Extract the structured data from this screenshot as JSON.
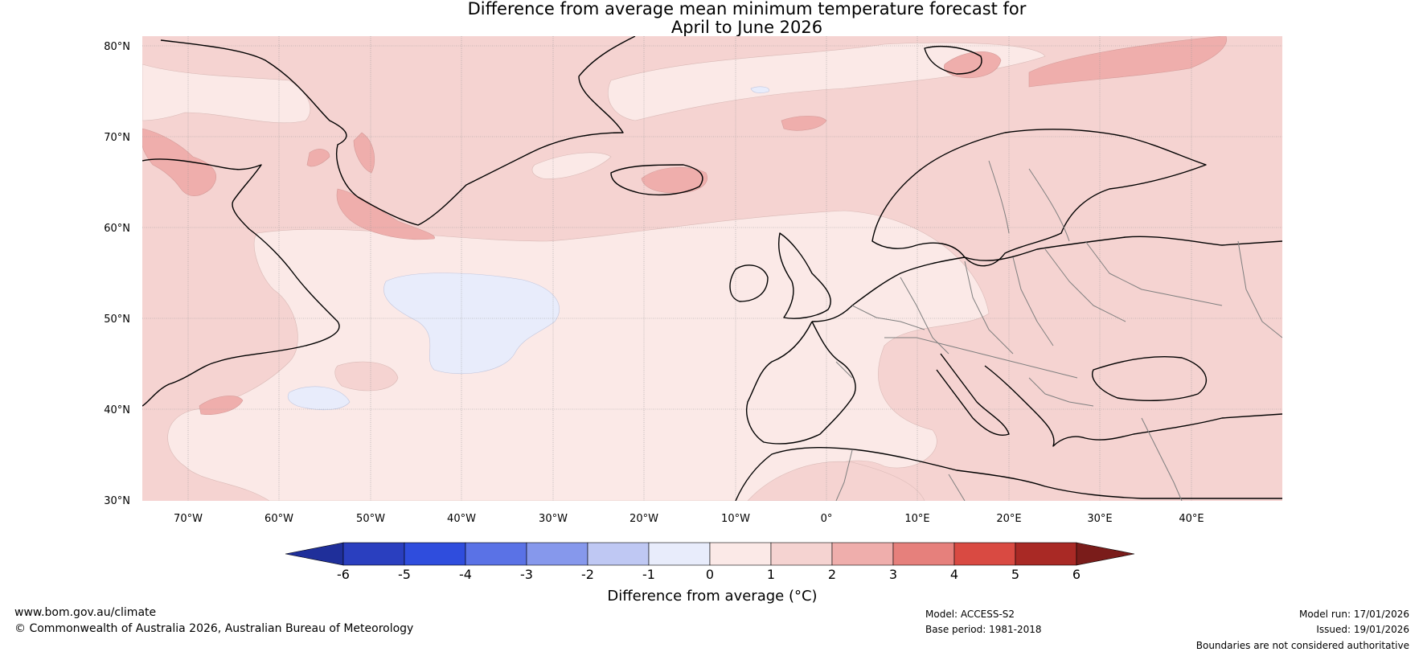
{
  "title": {
    "line1": "Difference from average mean minimum temperature forecast for",
    "line2": "April to June 2026"
  },
  "lat_labels": [
    "80°N",
    "70°N",
    "60°N",
    "50°N",
    "40°N",
    "30°N"
  ],
  "lon_labels": [
    "70°W",
    "60°W",
    "50°W",
    "40°W",
    "30°W",
    "20°W",
    "10°W",
    "0°",
    "10°E",
    "20°E",
    "30°E",
    "40°E"
  ],
  "colorbar": {
    "ticks": [
      "-6",
      "-5",
      "-4",
      "-3",
      "-2",
      "-1",
      "0",
      "1",
      "2",
      "3",
      "4",
      "5",
      "6"
    ],
    "colors": [
      "#1f2f9a",
      "#2a3fbf",
      "#2f4ddd",
      "#5a72e6",
      "#8698ec",
      "#bfc8f3",
      "#e8ecfb",
      "#fbe9e7",
      "#f5d3d1",
      "#efaeac",
      "#e6807c",
      "#d94a42",
      "#a92925",
      "#7a1c1a"
    ],
    "label": "Difference from average (°C)"
  },
  "footer": {
    "url": "www.bom.gov.au/climate",
    "copyright": "© Commonwealth of Australia 2026, Australian Bureau of Meteorology",
    "model": "Model: ACCESS-S2",
    "base_period": "Base period: 1981-2018",
    "model_run": "Model run: 17/01/2026",
    "issued": "Issued: 19/01/2026",
    "disclaimer": "Boundaries are not considered authoritative"
  }
}
